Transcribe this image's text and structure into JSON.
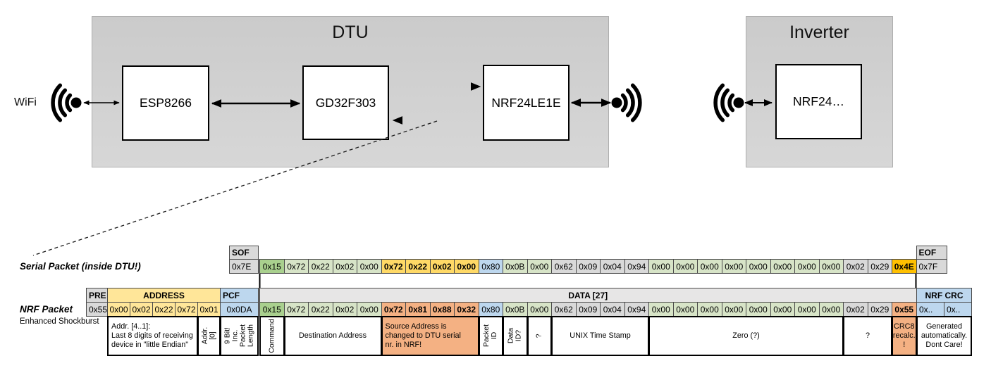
{
  "colors": {
    "accent_orange": "#ED7D31",
    "accent_green": "#70AD47",
    "dashed_blue": "#6687D0",
    "cell_gray": "#D9D9D9",
    "cell_green_light": "#D7E4C7",
    "cell_green_dark": "#A9D08E",
    "cell_yellow": "#FFE699",
    "cell_yellow_bold": "#FFD966",
    "cell_amber": "#FFC000",
    "cell_blue": "#BDD7EE",
    "cell_salmon": "#F4B183",
    "header_gray": "#E7E6E6"
  },
  "diagram": {
    "wifi_label": "WiFi",
    "dtu": {
      "title": "DTU",
      "components": [
        "ESP8266",
        "GD32F303",
        "NRF24LE1E"
      ]
    },
    "inverter": {
      "title": "Inverter",
      "components": [
        "NRF24…"
      ]
    }
  },
  "serial_packet": {
    "label": "Serial Packet (inside DTU!)",
    "sof": {
      "header": "SOF",
      "value": "0x7E"
    },
    "eof": {
      "header": "EOF",
      "value": "0x7F"
    },
    "bytes": [
      {
        "v": "0x15",
        "c": "gd"
      },
      {
        "v": "0x72",
        "c": "gl"
      },
      {
        "v": "0x22",
        "c": "gl"
      },
      {
        "v": "0x02",
        "c": "gl"
      },
      {
        "v": "0x00",
        "c": "gl"
      },
      {
        "v": "0x72",
        "c": "yb",
        "bold": true
      },
      {
        "v": "0x22",
        "c": "yb",
        "bold": true
      },
      {
        "v": "0x02",
        "c": "yb",
        "bold": true
      },
      {
        "v": "0x00",
        "c": "yb",
        "bold": true
      },
      {
        "v": "0x80",
        "c": "bl"
      },
      {
        "v": "0x0B",
        "c": "gl"
      },
      {
        "v": "0x00",
        "c": "gl"
      },
      {
        "v": "0x62",
        "c": "g"
      },
      {
        "v": "0x09",
        "c": "g"
      },
      {
        "v": "0x04",
        "c": "g"
      },
      {
        "v": "0x94",
        "c": "g"
      },
      {
        "v": "0x00",
        "c": "gl"
      },
      {
        "v": "0x00",
        "c": "gl"
      },
      {
        "v": "0x00",
        "c": "gl"
      },
      {
        "v": "0x00",
        "c": "gl"
      },
      {
        "v": "0x00",
        "c": "gl"
      },
      {
        "v": "0x00",
        "c": "gl"
      },
      {
        "v": "0x00",
        "c": "gl"
      },
      {
        "v": "0x00",
        "c": "gl"
      },
      {
        "v": "0x02",
        "c": "g"
      },
      {
        "v": "0x29",
        "c": "g"
      },
      {
        "v": "0x4E",
        "c": "am",
        "bold": true
      }
    ]
  },
  "nrf_packet": {
    "label": "NRF Packet",
    "sublabel": "Enhanced Shockburst",
    "pre": {
      "header": "PRE",
      "value": "0x55"
    },
    "address": {
      "header": "ADDRESS",
      "values": [
        "0x00",
        "0x02",
        "0x22",
        "0x72",
        "0x01"
      ]
    },
    "pcf": {
      "header": "PCF",
      "value": "0x0DA"
    },
    "data_header": "DATA [27]",
    "bytes": [
      {
        "v": "0x15",
        "c": "gd"
      },
      {
        "v": "0x72",
        "c": "gl"
      },
      {
        "v": "0x22",
        "c": "gl"
      },
      {
        "v": "0x02",
        "c": "gl"
      },
      {
        "v": "0x00",
        "c": "gl"
      },
      {
        "v": "0x72",
        "c": "s",
        "bold": true
      },
      {
        "v": "0x81",
        "c": "s",
        "bold": true
      },
      {
        "v": "0x88",
        "c": "s",
        "bold": true
      },
      {
        "v": "0x32",
        "c": "s",
        "bold": true
      },
      {
        "v": "0x80",
        "c": "bl"
      },
      {
        "v": "0x0B",
        "c": "gl"
      },
      {
        "v": "0x00",
        "c": "gl"
      },
      {
        "v": "0x62",
        "c": "g"
      },
      {
        "v": "0x09",
        "c": "g"
      },
      {
        "v": "0x04",
        "c": "g"
      },
      {
        "v": "0x94",
        "c": "g"
      },
      {
        "v": "0x00",
        "c": "gl"
      },
      {
        "v": "0x00",
        "c": "gl"
      },
      {
        "v": "0x00",
        "c": "gl"
      },
      {
        "v": "0x00",
        "c": "gl"
      },
      {
        "v": "0x00",
        "c": "gl"
      },
      {
        "v": "0x00",
        "c": "gl"
      },
      {
        "v": "0x00",
        "c": "gl"
      },
      {
        "v": "0x00",
        "c": "gl"
      },
      {
        "v": "0x02",
        "c": "g"
      },
      {
        "v": "0x29",
        "c": "g"
      },
      {
        "v": "0x55",
        "c": "s",
        "bold": true
      }
    ],
    "crc": {
      "header": "NRF CRC",
      "values": [
        "0x..",
        "0x.."
      ]
    },
    "annotations": [
      {
        "name": "addr-4-1-note",
        "text": "Addr. [4..1]:\nLast 8 digits of receiving device in \"little Endian\"",
        "vertical": false,
        "bg": "white",
        "align": "left"
      },
      {
        "name": "addr-0-note",
        "text": "Addr.[0]",
        "vertical": true,
        "bg": "white"
      },
      {
        "name": "pcf-note",
        "text": "9 Bit!\nInc. Packet\nLength",
        "vertical": true,
        "bg": "white"
      },
      {
        "name": "command-note",
        "text": "Command",
        "vertical": true,
        "bg": "white"
      },
      {
        "name": "destination-address-note",
        "text": "Destination Address",
        "vertical": false,
        "bg": "white"
      },
      {
        "name": "source-address-note",
        "text": "Source Address is\nchanged to DTU serial\nnr. in NRF!",
        "vertical": false,
        "bg": "salmon",
        "align": "left"
      },
      {
        "name": "packet-id-note",
        "text": "Packet ID",
        "vertical": true,
        "bg": "white"
      },
      {
        "name": "data-id-note",
        "text": "Data ID?",
        "vertical": true,
        "bg": "white"
      },
      {
        "name": "unknown-byte-note",
        "text": "?",
        "vertical": true,
        "bg": "white"
      },
      {
        "name": "unix-time-stamp-note",
        "text": "UNIX Time Stamp",
        "vertical": false,
        "bg": "white"
      },
      {
        "name": "zero-note",
        "text": "Zero (?)",
        "vertical": false,
        "bg": "white"
      },
      {
        "name": "unknown-tail-note",
        "text": "?",
        "vertical": false,
        "bg": "white"
      },
      {
        "name": "crc8-note",
        "text": "CRC8\nrecalc.\n!",
        "vertical": false,
        "bg": "salmon"
      },
      {
        "name": "nrf-crc-note",
        "text": "Generated\nautomatically.\nDont Care!",
        "vertical": false,
        "bg": "white"
      }
    ]
  }
}
